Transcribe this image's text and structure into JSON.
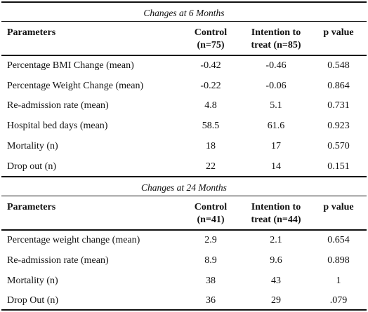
{
  "sections": [
    {
      "title": "Changes at 6 Months",
      "header": [
        "Parameters",
        [
          "Control",
          "(n=75)"
        ],
        [
          "Intention to",
          "treat (n=85)"
        ],
        "p value"
      ],
      "rows": [
        [
          "Percentage BMI Change (mean)",
          "-0.42",
          "-0.46",
          "0.548"
        ],
        [
          "Percentage Weight Change (mean)",
          "-0.22",
          "-0.06",
          "0.864"
        ],
        [
          "Re-admission rate (mean)",
          "4.8",
          "5.1",
          "0.731"
        ],
        [
          "Hospital bed days (mean)",
          "58.5",
          "61.6",
          "0.923"
        ],
        [
          "Mortality (n)",
          "18",
          "17",
          "0.570"
        ],
        [
          "Drop out (n)",
          "22",
          "14",
          "0.151"
        ]
      ]
    },
    {
      "title": "Changes at 24 Months",
      "header": [
        "Parameters",
        [
          "Control",
          "(n=41)"
        ],
        [
          "Intention to",
          "treat (n=44)"
        ],
        "p value"
      ],
      "rows": [
        [
          "Percentage weight change (mean)",
          "2.9",
          "2.1",
          "0.654"
        ],
        [
          "Re-admission rate (mean)",
          "8.9",
          "9.6",
          "0.898"
        ],
        [
          "Mortality (n)",
          "38",
          "43",
          "1"
        ],
        [
          "Drop Out (n)",
          "36",
          "29",
          ".079"
        ]
      ]
    }
  ]
}
